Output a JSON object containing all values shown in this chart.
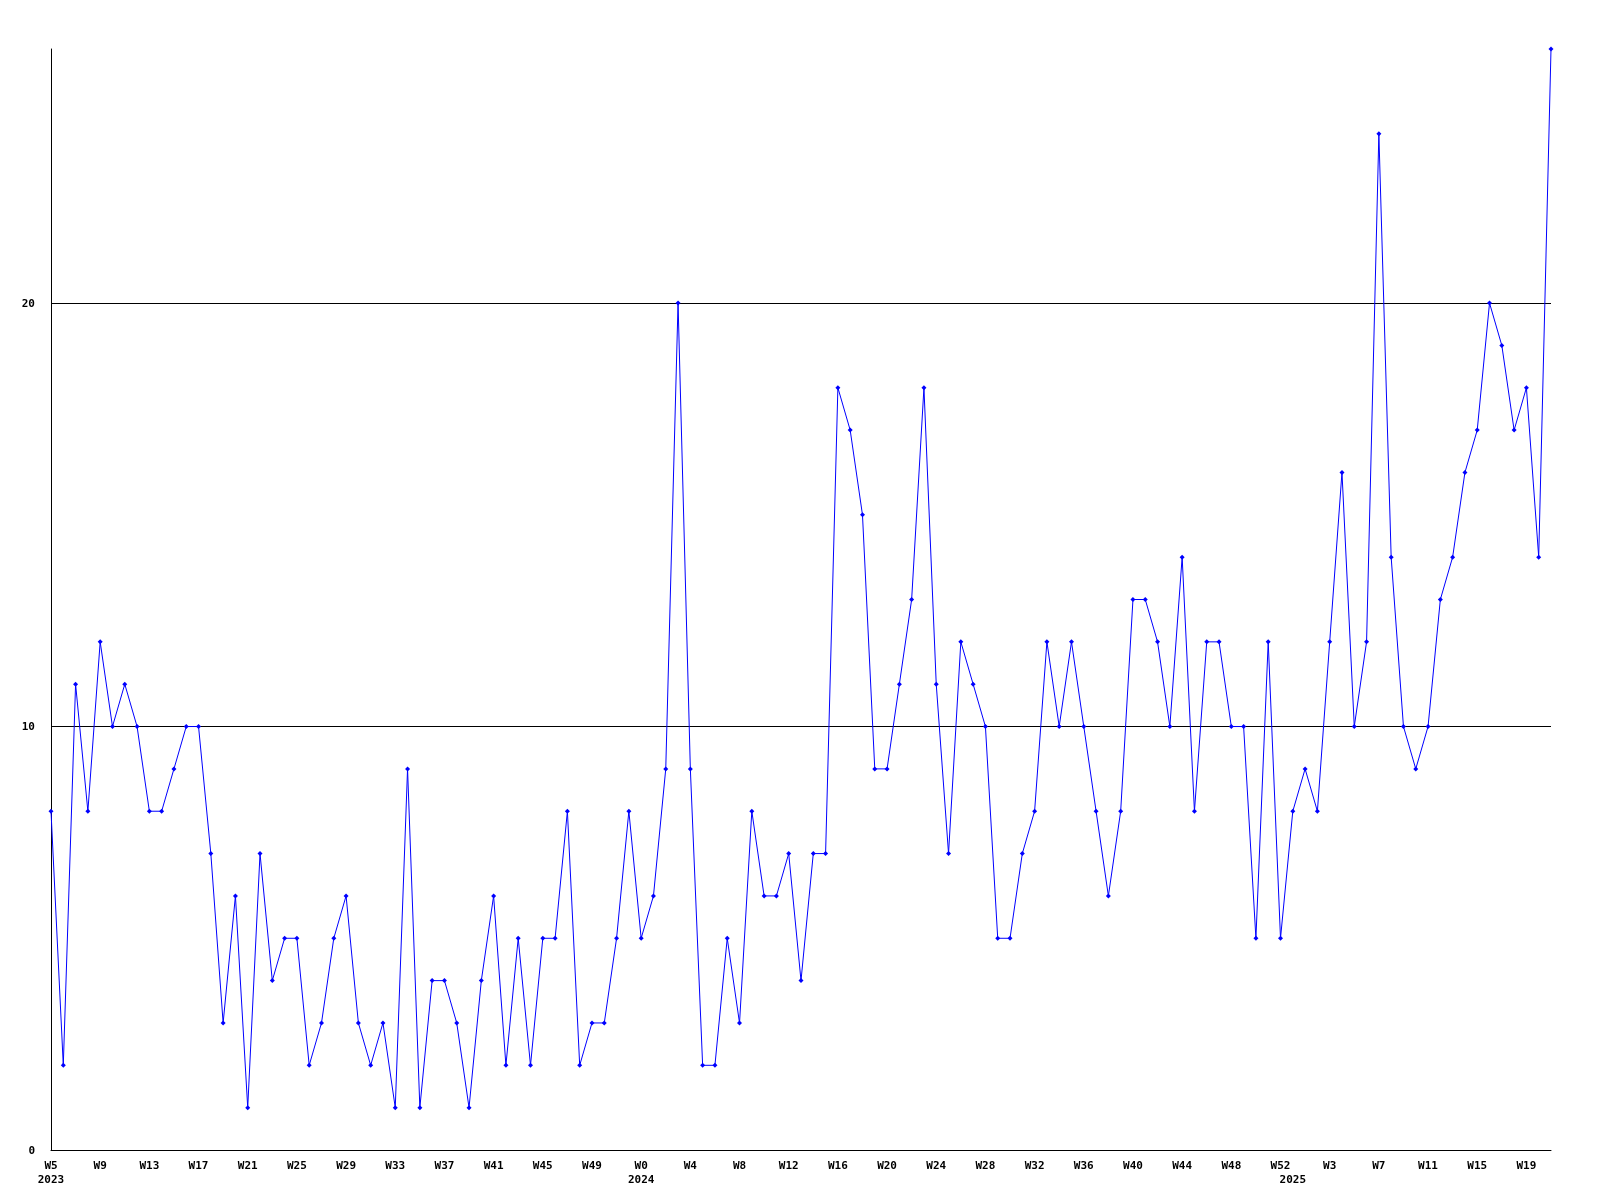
{
  "chart_data": {
    "type": "line",
    "categories": [
      "W5\n2023",
      null,
      null,
      null,
      "W9",
      null,
      null,
      null,
      "W13",
      null,
      null,
      null,
      "W17",
      null,
      null,
      null,
      "W21",
      null,
      null,
      null,
      "W25",
      null,
      null,
      null,
      "W29",
      null,
      null,
      null,
      "W33",
      null,
      null,
      null,
      "W37",
      null,
      null,
      null,
      "W41",
      null,
      null,
      null,
      "W45",
      null,
      null,
      null,
      "W49",
      null,
      null,
      null,
      "W0\n2024",
      null,
      null,
      null,
      "W4",
      null,
      null,
      null,
      "W8",
      null,
      null,
      null,
      "W12",
      null,
      null,
      null,
      "W16",
      null,
      null,
      null,
      "W20",
      null,
      null,
      null,
      "W24",
      null,
      null,
      null,
      "W28",
      null,
      null,
      null,
      "W32",
      null,
      null,
      null,
      "W36",
      null,
      null,
      null,
      "W40",
      null,
      null,
      null,
      "W44",
      null,
      null,
      null,
      "W48",
      null,
      null,
      null,
      "W52",
      "\n2025",
      null,
      null,
      "W3",
      null,
      null,
      null,
      "W7",
      null,
      null,
      null,
      "W11",
      null,
      null,
      null,
      "W15",
      null,
      null,
      null,
      "W19",
      null,
      null
    ],
    "series": [
      {
        "color": "#0000ff",
        "values": [
          8,
          2,
          11,
          8,
          12,
          10,
          11,
          10,
          8,
          8,
          9,
          10,
          10,
          7,
          3,
          6,
          1,
          7,
          4,
          5,
          5,
          2,
          3,
          5,
          6,
          3,
          2,
          3,
          1,
          9,
          1,
          4,
          4,
          3,
          1,
          4,
          6,
          2,
          5,
          2,
          5,
          5,
          8,
          2,
          3,
          3,
          5,
          8,
          5,
          6,
          9,
          20,
          9,
          2,
          2,
          5,
          3,
          8,
          6,
          6,
          7,
          4,
          7,
          7,
          18,
          17,
          15,
          9,
          9,
          11,
          13,
          18,
          11,
          7,
          12,
          11,
          10,
          5,
          5,
          7,
          8,
          12,
          10,
          12,
          10,
          8,
          6,
          8,
          13,
          13,
          12,
          10,
          14,
          8,
          12,
          12,
          10,
          10,
          5,
          12,
          5,
          8,
          9,
          8,
          12,
          16,
          10,
          12,
          24,
          14,
          10,
          9,
          10,
          13,
          14,
          16,
          17,
          20,
          19,
          17,
          18,
          14,
          26
        ]
      }
    ],
    "ylim": [
      0,
      26
    ],
    "yticks": [
      0,
      10,
      20
    ],
    "grid": "y",
    "marker": "diamond",
    "line_style": "solid"
  }
}
